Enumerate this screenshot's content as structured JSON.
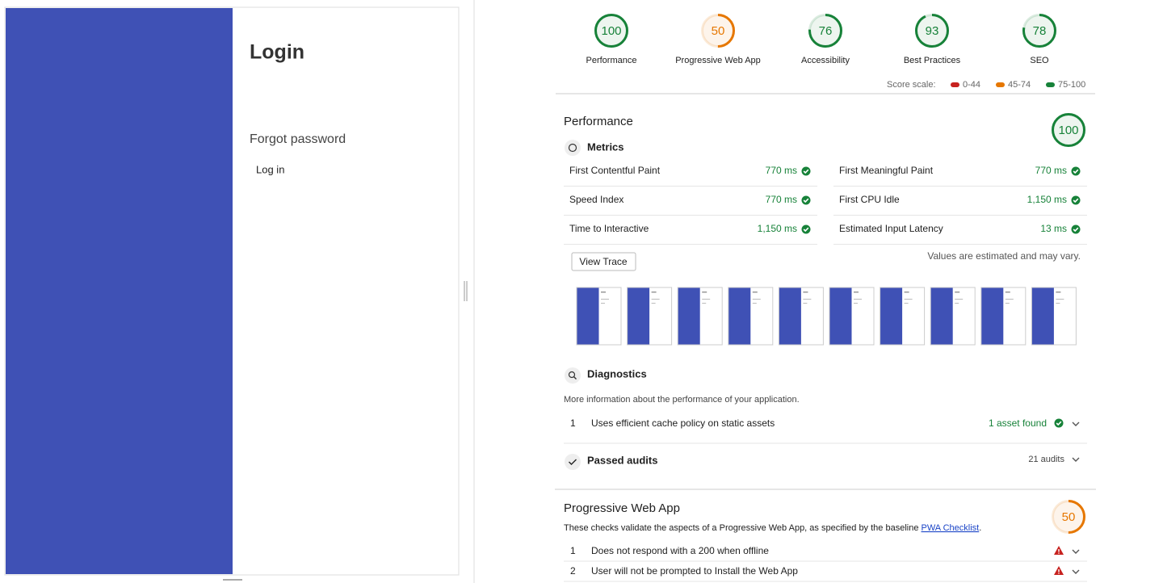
{
  "app": {
    "title": "Login",
    "forgot": "Forgot password",
    "login_button": "Log in"
  },
  "report": {
    "categories": [
      {
        "score": 100,
        "label": "Performance",
        "color": "#178239"
      },
      {
        "score": 50,
        "label": "Progressive Web App",
        "color": "#e67700"
      },
      {
        "score": 76,
        "label": "Accessibility",
        "color": "#178239"
      },
      {
        "score": 93,
        "label": "Best Practices",
        "color": "#178239"
      },
      {
        "score": 78,
        "label": "SEO",
        "color": "#178239"
      }
    ],
    "score_scale": {
      "label": "Score scale:",
      "ranges": [
        {
          "label": "0-44",
          "color": "#c7221f"
        },
        {
          "label": "45-74",
          "color": "#e67700"
        },
        {
          "label": "75-100",
          "color": "#178239"
        }
      ]
    },
    "performance": {
      "title": "Performance",
      "score": 100,
      "color": "#178239",
      "metrics_title": "Metrics",
      "metrics": [
        {
          "name": "First Contentful Paint",
          "value": "770 ms"
        },
        {
          "name": "First Meaningful Paint",
          "value": "770 ms"
        },
        {
          "name": "Speed Index",
          "value": "770 ms"
        },
        {
          "name": "First CPU Idle",
          "value": "1,150 ms"
        },
        {
          "name": "Time to Interactive",
          "value": "1,150 ms"
        },
        {
          "name": "Estimated Input Latency",
          "value": "13 ms"
        }
      ],
      "view_trace": "View Trace",
      "note": "Values are estimated and may vary.",
      "diagnostics": {
        "title": "Diagnostics",
        "description": "More information about the performance of your application.",
        "items": [
          {
            "index": 1,
            "title": "Uses efficient cache policy on static assets",
            "result": "1 asset found"
          }
        ]
      },
      "passed": {
        "title": "Passed audits",
        "count": "21 audits"
      }
    },
    "pwa": {
      "title": "Progressive Web App",
      "score": 50,
      "color": "#e67700",
      "description": "These checks validate the aspects of a Progressive Web App, as specified by the baseline ",
      "link": "PWA Checklist",
      "description_end": ".",
      "items": [
        {
          "index": 1,
          "title": "Does not respond with a 200 when offline"
        },
        {
          "index": 2,
          "title": "User will not be prompted to Install the Web App"
        }
      ]
    }
  }
}
